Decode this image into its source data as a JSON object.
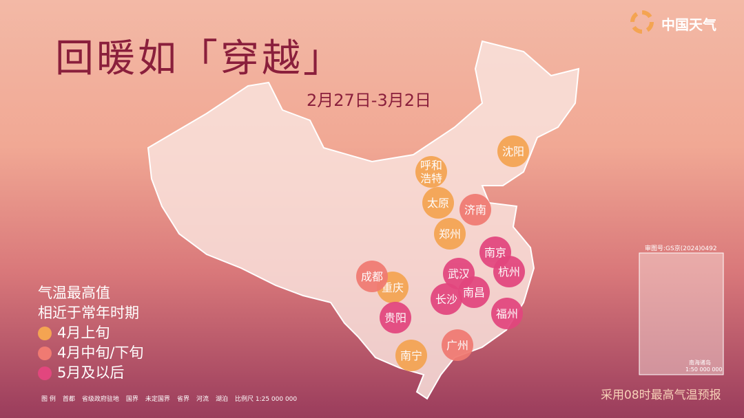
{
  "header": {
    "title": "回暖如「穿越」",
    "date": "2月27日-3月2日",
    "brand": "中国天气"
  },
  "legend": {
    "title": [
      "气温最高值",
      "相近于常年时期"
    ],
    "items": [
      {
        "label": "4月上旬",
        "color": "#f4a452",
        "cities": [
          "沈阳",
          "呼和浩特",
          "太原",
          "郑州",
          "重庆",
          "南宁"
        ]
      },
      {
        "label": "4月中旬/下旬",
        "color": "#f07a72",
        "cities": [
          "济南",
          "成都",
          "广州"
        ]
      },
      {
        "label": "5月及以后",
        "color": "#e2467e",
        "cities": [
          "南京",
          "杭州",
          "武汉",
          "南昌",
          "长沙",
          "福州",
          "贵阳"
        ]
      }
    ]
  },
  "map_legend": {
    "title": "图 例",
    "items": [
      "首都",
      "省级政府驻地",
      "国界",
      "未定国界",
      "省界",
      "河流",
      "湖泊"
    ],
    "scale": "比例尺 1:25 000 000"
  },
  "inset": {
    "approval": "审图号:GS京(2024)0492",
    "label": "南海诸岛",
    "scale": "1:50 000 000"
  },
  "footnote": "采用08时最高气温预报"
}
